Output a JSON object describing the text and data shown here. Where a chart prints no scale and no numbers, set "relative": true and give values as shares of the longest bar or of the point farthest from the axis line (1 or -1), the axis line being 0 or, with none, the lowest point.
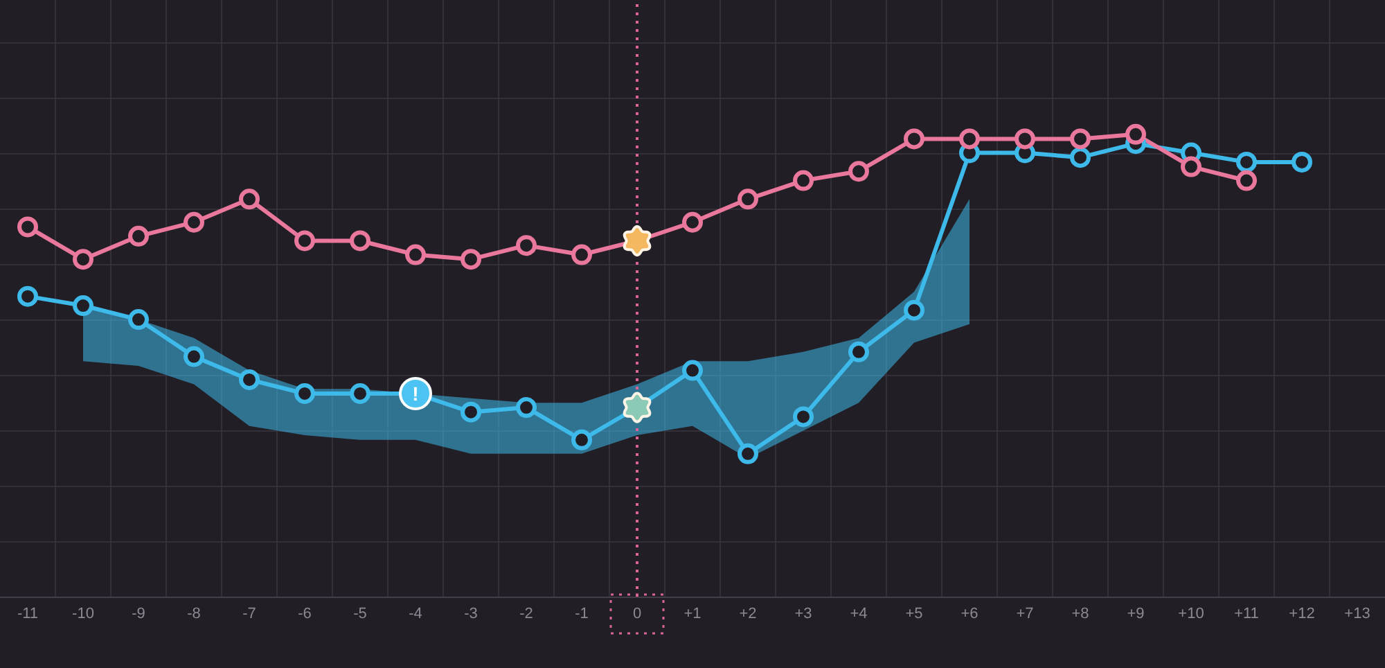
{
  "chart_data": {
    "type": "line",
    "relative": true,
    "x": [
      -11,
      -10,
      -9,
      -8,
      -7,
      -6,
      -5,
      -4,
      -3,
      -2,
      -1,
      0,
      1,
      2,
      3,
      4,
      5,
      6,
      7,
      8,
      9,
      10,
      11,
      12
    ],
    "xlim": [
      -11.5,
      13.5
    ],
    "xticks": [
      -11,
      -10,
      -9,
      -8,
      -7,
      -6,
      -5,
      -4,
      -3,
      -2,
      -1,
      0,
      {
        "value": 1,
        "label": "+1"
      },
      {
        "value": 2,
        "label": "+2"
      },
      {
        "value": 3,
        "label": "+3"
      },
      {
        "value": 4,
        "label": "+4"
      },
      {
        "value": 5,
        "label": "+5"
      },
      {
        "value": 6,
        "label": "+6"
      },
      {
        "value": 7,
        "label": "+7"
      },
      {
        "value": 8,
        "label": "+8"
      },
      {
        "value": 9,
        "label": "+9"
      },
      {
        "value": 10,
        "label": "+10"
      },
      {
        "value": 11,
        "label": "+11"
      },
      {
        "value": 12,
        "label": "+12"
      },
      {
        "value": 13,
        "label": "+13"
      }
    ],
    "grid": true,
    "marker": "circle",
    "series": [
      {
        "color": "#e9789c",
        "x": [
          -11,
          -10,
          -9,
          -8,
          -7,
          -6,
          -5,
          -4,
          -3,
          -2,
          -1,
          0,
          1,
          2,
          3,
          4,
          5,
          6,
          7,
          8,
          9,
          10,
          11
        ],
        "colors": [
          "#e9789c",
          "#e9789c",
          "#e9789c",
          "#e9789c",
          "#e9789c",
          "#e9789c",
          "#e9789c",
          "#e9789c",
          "#e9789c",
          "#e9789c",
          "#e9789c",
          "#f4b860",
          "#e9789c",
          "#e9789c",
          "#e9789c",
          "#e9789c",
          "#e9789c",
          "#e9789c",
          "#e9789c",
          "#e9789c",
          "#e9789c",
          "#e9789c",
          "#e9789c"
        ],
        "values": [
          0.8,
          0.73,
          0.78,
          0.81,
          0.86,
          0.77,
          0.77,
          0.74,
          0.73,
          0.76,
          0.74,
          0.77,
          0.81,
          0.86,
          0.9,
          0.92,
          0.99,
          0.99,
          0.99,
          0.99,
          1,
          0.93,
          0.9
        ]
      },
      {
        "color": "#3db9ea",
        "colors": [
          "#3db9ea",
          "#3db9ea",
          "#3db9ea",
          "#3db9ea",
          "#3db9ea",
          "#3db9ea",
          "#3db9ea",
          "#3db9ea",
          "#3db9ea",
          "#3db9ea",
          "#3db9ea",
          "#8ccab8",
          "#3db9ea",
          "#3db9ea",
          "#3db9ea",
          "#3db9ea",
          "#3db9ea",
          "#3db9ea",
          "#3db9ea",
          "#3db9ea",
          "#3db9ea",
          "#3db9ea",
          "#3db9ea",
          "#3db9ea"
        ],
        "values": [
          0.65,
          0.63,
          0.6,
          0.52,
          0.47,
          0.44,
          0.44,
          0.44,
          0.4,
          0.41,
          0.34,
          0.41,
          0.49,
          0.31,
          0.39,
          0.53,
          0.62,
          0.96,
          0.96,
          0.95,
          0.98,
          0.96,
          0.94,
          0.94
        ],
        "lower": [
          null,
          0.51,
          0.5,
          0.46,
          0.37,
          0.35,
          0.34,
          0.34,
          0.31,
          0.31,
          0.31,
          0.35,
          0.37,
          0.3,
          0.36,
          0.42,
          0.55,
          0.59,
          null,
          null,
          null,
          null,
          null,
          null
        ],
        "upper": [
          null,
          0.63,
          0.6,
          0.56,
          0.49,
          0.45,
          0.45,
          0.44,
          0.43,
          0.42,
          0.42,
          0.46,
          0.51,
          0.51,
          0.53,
          0.56,
          0.66,
          0.86,
          null,
          null,
          null,
          null,
          null,
          null
        ]
      }
    ],
    "ref_lines": [
      {
        "axis": "x",
        "value": 0,
        "color": "#d9649a",
        "line_style": "dotted"
      }
    ],
    "annotations": [
      {
        "text": "!",
        "x": -4,
        "y": 0.44
      }
    ]
  }
}
